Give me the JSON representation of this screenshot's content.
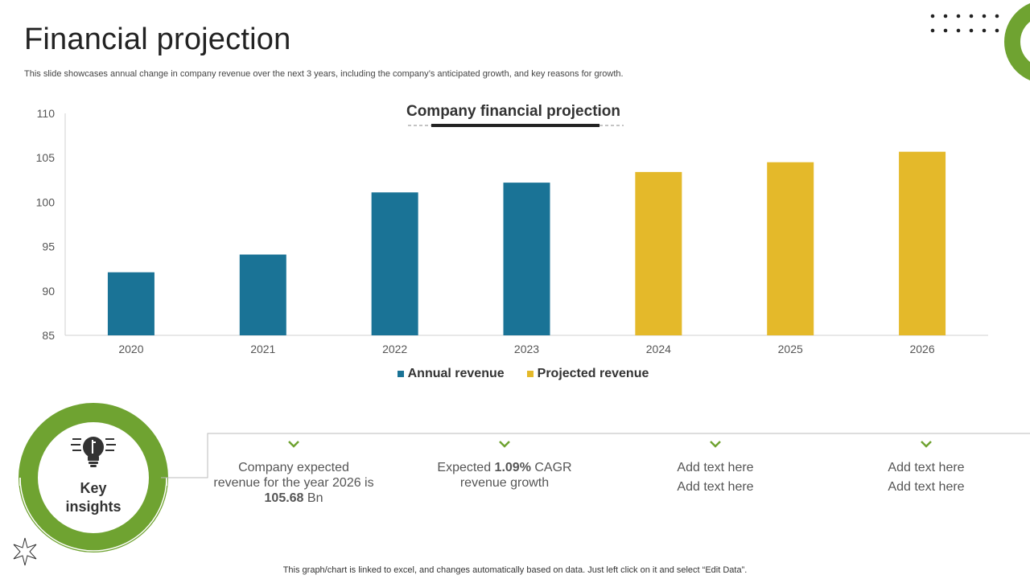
{
  "slide": {
    "title": "Financial projection",
    "subtitle": "This slide showcases annual change in company revenue over the next 3 years, including the company’s anticipated growth, and key reasons for growth.",
    "footer": "This graph/chart is linked to excel,  and changes automatically based on data. Just left click on it and select “Edit Data”."
  },
  "colors": {
    "accent_green": "#6fa331",
    "annual": "#1a7396",
    "projected": "#e4b92a"
  },
  "chart_data": {
    "type": "bar",
    "title": "Company financial projection",
    "categories": [
      "2020",
      "2021",
      "2022",
      "2023",
      "2024",
      "2025",
      "2026"
    ],
    "series": [
      {
        "name": "Annual revenue",
        "values": [
          92.1,
          94.1,
          101.1,
          102.2,
          null,
          null,
          null
        ]
      },
      {
        "name": "Projected revenue",
        "values": [
          null,
          null,
          null,
          null,
          103.4,
          104.5,
          105.68
        ]
      }
    ],
    "ylim": [
      85,
      110
    ],
    "yticks": [
      "85",
      "90",
      "95",
      "100",
      "105",
      "110"
    ],
    "legend_position": "bottom",
    "grid": false
  },
  "insights": {
    "label_line1": "Key",
    "label_line2": "insights",
    "items": [
      {
        "prefix": "Company expected revenue for the year 2026 is ",
        "bold": "105.68",
        "suffix": " Bn"
      },
      {
        "prefix": "Expected ",
        "bold": "1.09%",
        "suffix": " CAGR revenue growth"
      },
      {
        "line1": "Add text here",
        "line2": "Add text here"
      },
      {
        "line1": "Add text here",
        "line2": "Add text here"
      }
    ]
  }
}
